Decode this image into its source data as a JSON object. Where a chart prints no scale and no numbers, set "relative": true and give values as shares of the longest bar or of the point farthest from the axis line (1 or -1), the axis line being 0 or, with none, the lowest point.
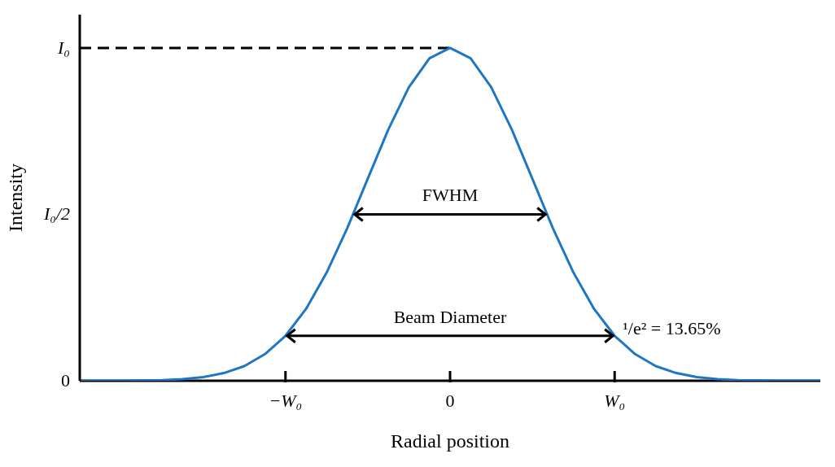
{
  "chart_data": {
    "type": "line",
    "xlabel": "Radial position",
    "ylabel": "Intensity",
    "relative": true,
    "categories": [
      null,
      null,
      null,
      null,
      null,
      null,
      null,
      null,
      null,
      null,
      "−W₀",
      null,
      null,
      null,
      null,
      null,
      null,
      null,
      "0",
      null,
      null,
      null,
      null,
      null,
      null,
      null,
      "W₀",
      null,
      null,
      null,
      null,
      null,
      null,
      null,
      null,
      null,
      null
    ],
    "series": [
      {
        "color": "#1f77c4",
        "values": [
          0,
          0,
          0,
          0.001,
          0.002,
          0.005,
          0.011,
          0.023,
          0.044,
          0.08,
          0.135,
          0.216,
          0.325,
          0.458,
          0.607,
          0.755,
          0.882,
          0.969,
          1,
          0.969,
          0.882,
          0.755,
          0.607,
          0.458,
          0.325,
          0.216,
          0.135,
          0.08,
          0.044,
          0.023,
          0.011,
          0.005,
          0.002,
          0.001,
          0,
          0,
          0
        ]
      }
    ],
    "ref_lines": [
      {
        "axis": "y",
        "value": 1,
        "label": "I₀",
        "line_style": "dashed",
        "color": "#000000"
      }
    ],
    "annotations": [
      "FWHM",
      "Beam Diameter",
      {
        "text": "¹/e² = 13.65%",
        "x": "W₀",
        "y": 0.135
      },
      "I₀/2",
      "0"
    ],
    "grid": false,
    "legend": false,
    "marker": "none",
    "line_style": "solid"
  }
}
